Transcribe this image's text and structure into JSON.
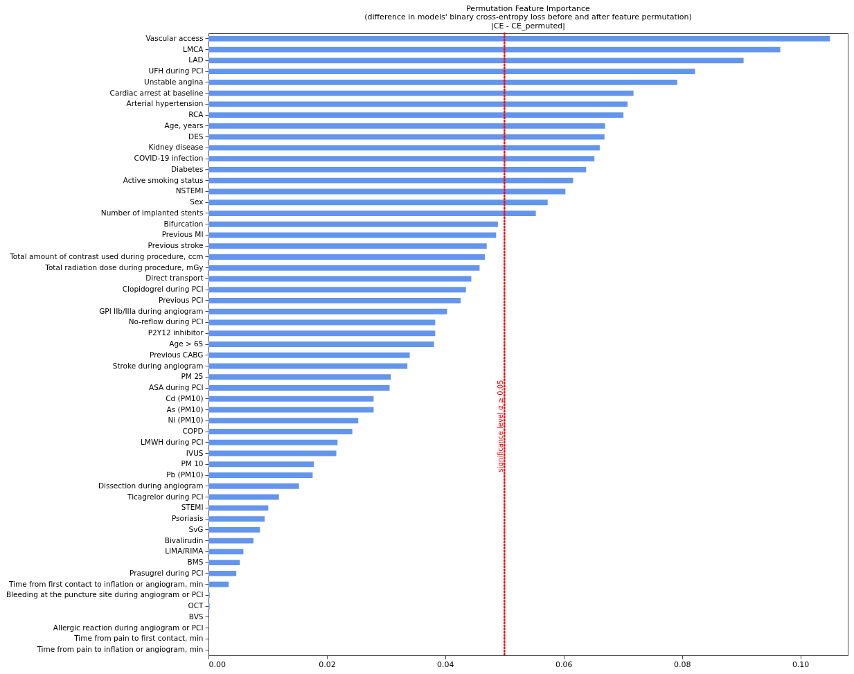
{
  "chart_data": {
    "type": "bar",
    "orientation": "horizontal",
    "title": "Permutation Feature Importance",
    "subtitle": [
      "(difference in models' binary cross-entropy loss before and after feature permutation)",
      "|CE - CE_permuted|"
    ],
    "categories": [
      "Vascular access",
      "LMCA",
      "LAD",
      "UFH during PCI",
      "Unstable angina",
      "Cardiac arrest at baseline",
      "Arterial hypertension",
      "RCA",
      "Age, years",
      "DES",
      "Kidney disease",
      "COVID-19 infection",
      "Diabetes",
      "Active smoking status",
      "NSTEMI",
      "Sex",
      "Number of implanted stents",
      "Bifurcation",
      "Previous MI",
      "Previous stroke",
      "Total amount of contrast used during procedure, ccm",
      "Total radiation dose during procedure, mGy",
      "Direct transport",
      "Clopidogrel during PCI",
      "Previous PCI",
      "GPI IIb/IIIa during angiogram",
      "No-reflow during PCI",
      "P2Y12 inhibitor",
      "Age > 65",
      "Previous CABG",
      "Stroke during angiogram",
      "PM 25",
      "ASA during PCI",
      "Cd (PM10)",
      "As (PM10)",
      "Ni (PM10)",
      "COPD",
      "LMWH during PCI",
      "IVUS",
      "PM 10",
      "Pb (PM10)",
      "Dissection during angiogram",
      "Ticagrelor during PCI",
      "STEMI",
      "Psoriasis",
      "SvG",
      "Bivalirudin",
      "LIMA/RIMA",
      "BMS",
      "Prasugrel during PCI",
      "Time from first contact to inflation or angiogram, min",
      "Bleeding at the puncture site during angiogram or PCI",
      "OCT",
      "BVS",
      "Allergic reaction during angiogram or PCI",
      "Time from pain to first contact, min",
      "Time from pain to inflation or angiogram, min"
    ],
    "values": [
      0.105,
      0.0966,
      0.0904,
      0.0822,
      0.0792,
      0.0718,
      0.0708,
      0.0701,
      0.067,
      0.0669,
      0.0661,
      0.0652,
      0.0638,
      0.0616,
      0.0603,
      0.0573,
      0.0553,
      0.0489,
      0.0486,
      0.047,
      0.0467,
      0.0458,
      0.0444,
      0.0435,
      0.0426,
      0.0403,
      0.0383,
      0.0383,
      0.0381,
      0.034,
      0.0336,
      0.0308,
      0.0306,
      0.0279,
      0.0279,
      0.0253,
      0.0243,
      0.0218,
      0.0216,
      0.0178,
      0.0176,
      0.0153,
      0.0119,
      0.0101,
      0.0095,
      0.0087,
      0.0076,
      0.0059,
      0.0053,
      0.0047,
      0.0034,
      0.0002,
      0.0002,
      0,
      0,
      0,
      0
    ],
    "color": "#6495ed",
    "xlim": [
      0,
      0.108
    ],
    "xticks": [
      {
        "value": 0,
        "label": "0.00"
      },
      {
        "value": 0.02,
        "label": "0.02"
      },
      {
        "value": 0.04,
        "label": "0.04"
      },
      {
        "value": 0.06,
        "label": "0.06"
      },
      {
        "value": 0.08,
        "label": "0.08"
      },
      {
        "value": 0.1,
        "label": "0.10"
      }
    ],
    "ref_lines": [
      {
        "axis": "x",
        "value": 0.05,
        "label": "significance level α ≥ 0.05",
        "color": "#ff0000",
        "line_style": "dotted"
      }
    ]
  }
}
